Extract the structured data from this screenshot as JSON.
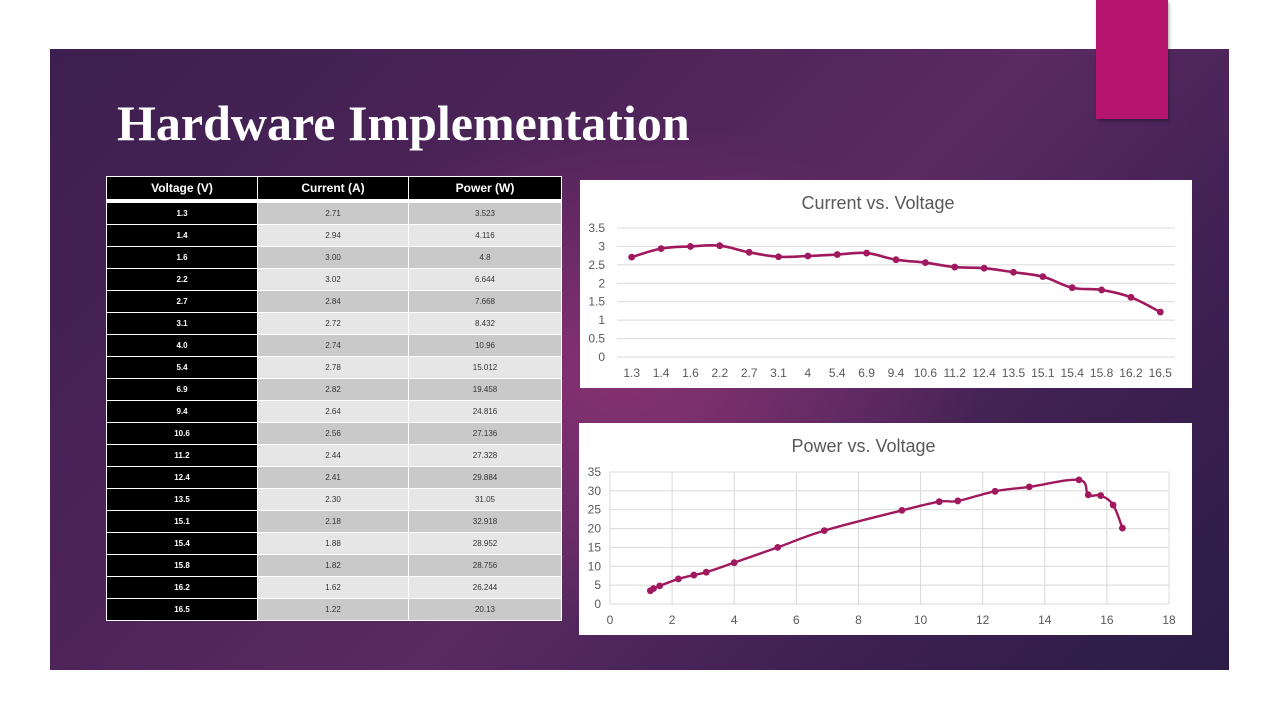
{
  "slide": {
    "title": "Hardware Implementation"
  },
  "colors": {
    "accent": "#b5156c",
    "series": "#a0195e",
    "panel_dark": "#3c1f4f"
  },
  "table": {
    "headers": [
      "Voltage (V)",
      "Current (A)",
      "Power (W)"
    ],
    "rows": [
      [
        "1.3",
        "2.71",
        "3.523"
      ],
      [
        "1.4",
        "2.94",
        "4.116"
      ],
      [
        "1.6",
        "3.00",
        "4.8"
      ],
      [
        "2.2",
        "3.02",
        "6.644"
      ],
      [
        "2.7",
        "2.84",
        "7.668"
      ],
      [
        "3.1",
        "2.72",
        "8.432"
      ],
      [
        "4.0",
        "2.74",
        "10.96"
      ],
      [
        "5.4",
        "2.78",
        "15.012"
      ],
      [
        "6.9",
        "2.82",
        "19.458"
      ],
      [
        "9.4",
        "2.64",
        "24.816"
      ],
      [
        "10.6",
        "2.56",
        "27.136"
      ],
      [
        "11.2",
        "2.44",
        "27.328"
      ],
      [
        "12.4",
        "2.41",
        "29.884"
      ],
      [
        "13.5",
        "2.30",
        "31.05"
      ],
      [
        "15.1",
        "2.18",
        "32.918"
      ],
      [
        "15.4",
        "1.88",
        "28.952"
      ],
      [
        "15.8",
        "1.82",
        "28.756"
      ],
      [
        "16.2",
        "1.62",
        "26.244"
      ],
      [
        "16.5",
        "1.22",
        "20.13"
      ]
    ]
  },
  "chart_data": [
    {
      "type": "line",
      "title": "Current vs. Voltage",
      "categories": [
        "1.3",
        "1.4",
        "1.6",
        "2.2",
        "2.7",
        "3.1",
        "4",
        "5.4",
        "6.9",
        "9.4",
        "10.6",
        "11.2",
        "12.4",
        "13.5",
        "15.1",
        "15.4",
        "15.8",
        "16.2",
        "16.5"
      ],
      "series": [
        {
          "values": [
            2.71,
            2.94,
            3.0,
            3.02,
            2.84,
            2.72,
            2.74,
            2.78,
            2.82,
            2.64,
            2.56,
            2.44,
            2.41,
            2.3,
            2.18,
            1.88,
            1.82,
            1.62,
            1.22
          ]
        }
      ],
      "yticks": [
        "0",
        "0.5",
        "1",
        "1.5",
        "2",
        "2.5",
        "3",
        "3.5"
      ],
      "ylim": [
        0,
        3.5
      ],
      "grid": "horizontal",
      "smooth": true
    },
    {
      "type": "scatter",
      "title": "Power vs. Voltage",
      "x": [
        1.3,
        1.4,
        1.6,
        2.2,
        2.7,
        3.1,
        4.0,
        5.4,
        6.9,
        9.4,
        10.6,
        11.2,
        12.4,
        13.5,
        15.1,
        15.4,
        15.8,
        16.2,
        16.5
      ],
      "series": [
        {
          "values": [
            3.523,
            4.116,
            4.8,
            6.644,
            7.668,
            8.432,
            10.96,
            15.012,
            19.458,
            24.816,
            27.136,
            27.328,
            29.884,
            31.05,
            32.918,
            28.952,
            28.756,
            26.244,
            20.13
          ]
        }
      ],
      "xticks": [
        "0",
        "2",
        "4",
        "6",
        "8",
        "10",
        "12",
        "14",
        "16",
        "18"
      ],
      "yticks": [
        "0",
        "5",
        "10",
        "15",
        "20",
        "25",
        "30",
        "35"
      ],
      "xlim": [
        0,
        18
      ],
      "ylim": [
        0,
        35
      ],
      "grid": "both",
      "smooth": true
    }
  ]
}
